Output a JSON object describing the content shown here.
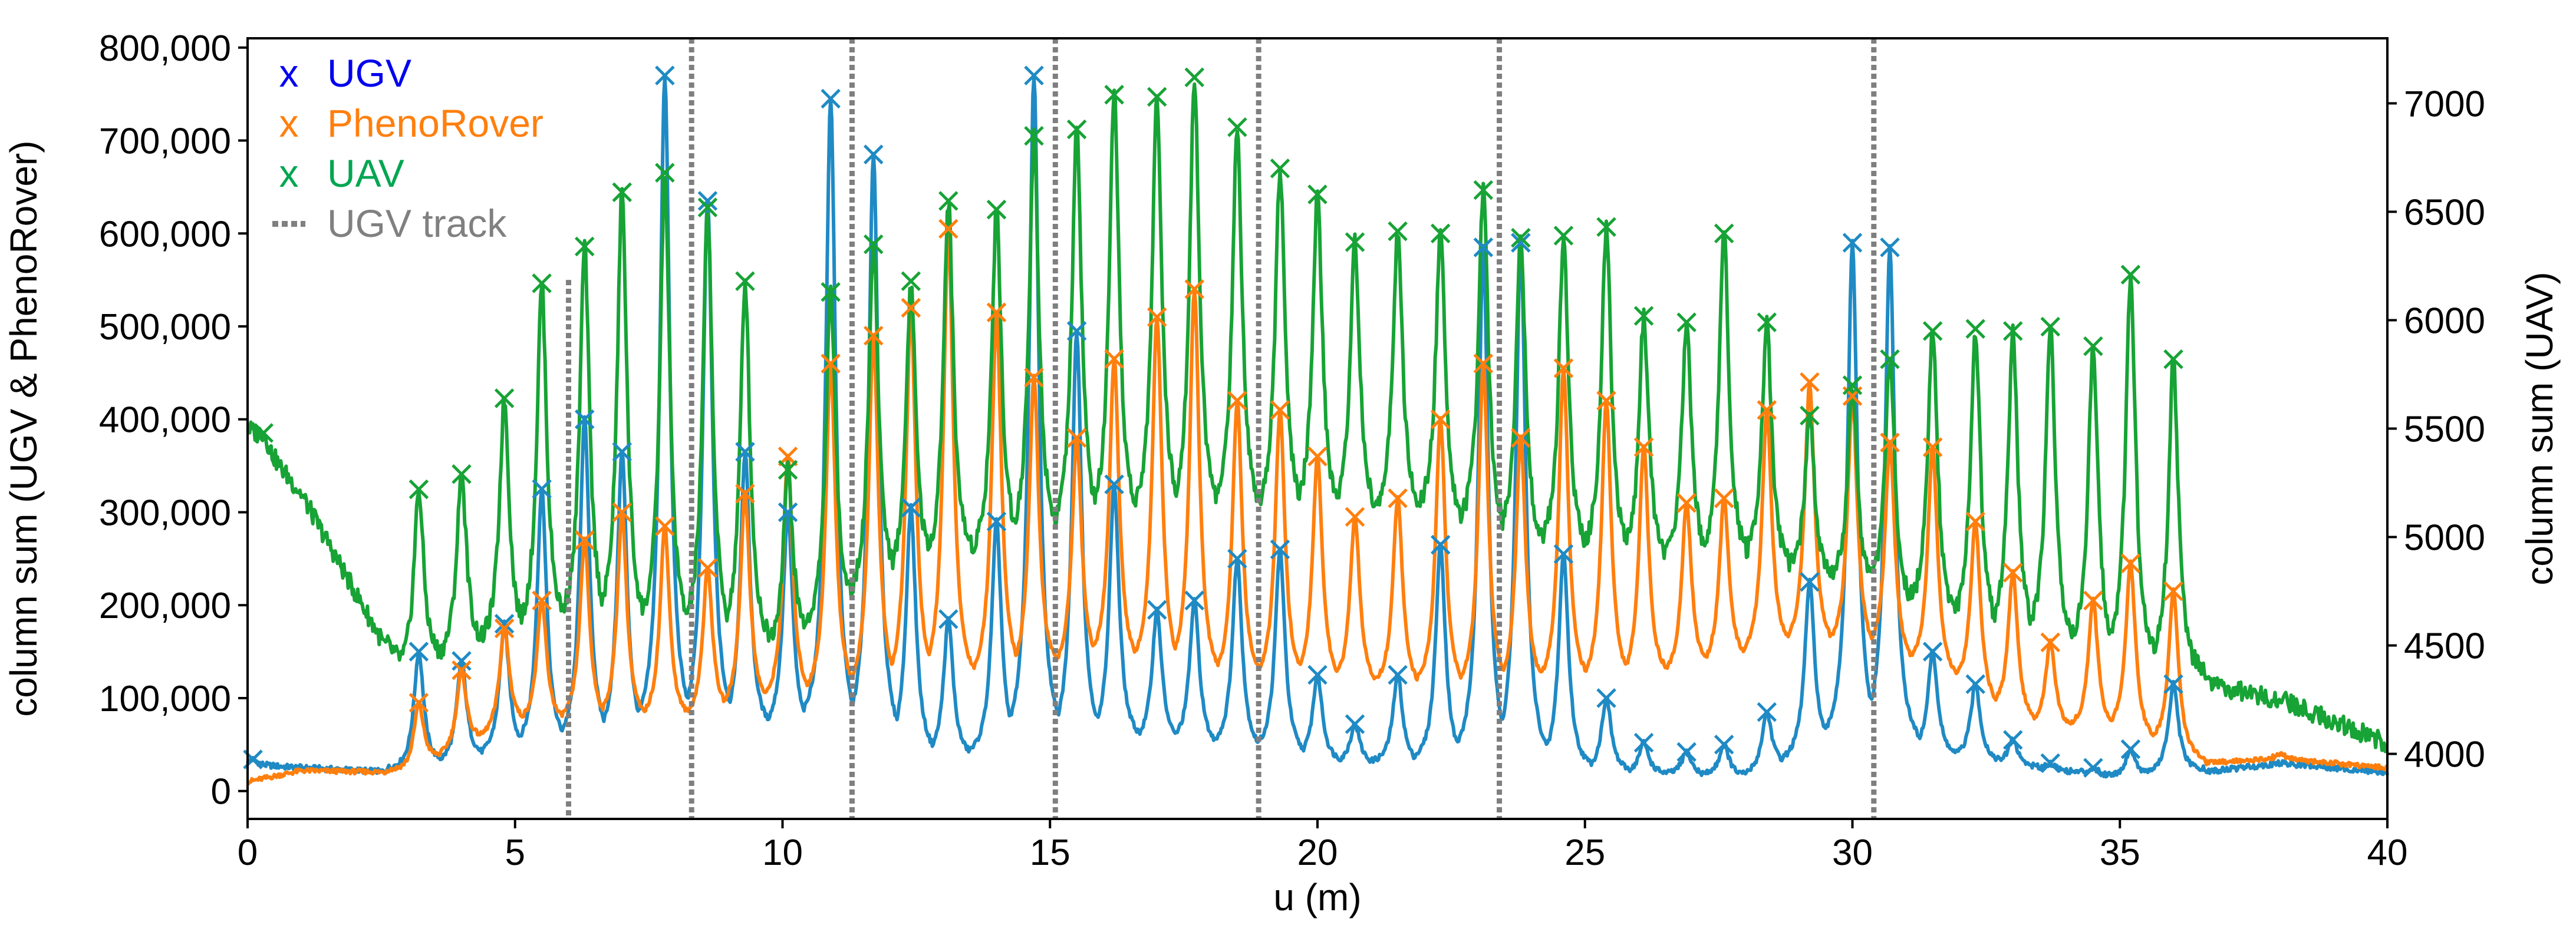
{
  "chart_data": {
    "type": "line",
    "title": "",
    "xlabel": "u (m)",
    "ylabel_left": "column sum (UGV & PhenoRover)",
    "ylabel_right": "column sum (UAV)",
    "xlim": [
      0,
      40
    ],
    "ylim_left": [
      -30000,
      810000
    ],
    "ylim_right": [
      3700,
      7300
    ],
    "xticks": [
      0,
      5,
      10,
      15,
      20,
      25,
      30,
      35,
      40
    ],
    "xtick_labels": [
      "0",
      "5",
      "10",
      "15",
      "20",
      "25",
      "30",
      "35",
      "40"
    ],
    "yticks_left": [
      0,
      100000,
      200000,
      300000,
      400000,
      500000,
      600000,
      700000,
      800000
    ],
    "ytick_labels_left": [
      "0",
      "100,000",
      "200,000",
      "300,000",
      "400,000",
      "500,000",
      "600,000",
      "700,000",
      "800,000"
    ],
    "yticks_right": [
      4000,
      4500,
      5000,
      5500,
      6000,
      6500,
      7000
    ],
    "ytick_labels_right": [
      "4000",
      "4500",
      "5000",
      "5500",
      "6000",
      "6500",
      "7000"
    ],
    "grid": false,
    "legend_position": "top-left",
    "legend": [
      {
        "marker": "x",
        "label": "UGV",
        "color": "#0000ee"
      },
      {
        "marker": "x",
        "label": "PhenoRover",
        "color": "#ff7f0e"
      },
      {
        "marker": "x",
        "label": "UAV",
        "color": "#00a651"
      },
      {
        "marker": "line-dotted",
        "label": "UGV track",
        "color": "#808080"
      }
    ],
    "ugv_track_x": [
      6.0,
      8.3,
      11.3,
      15.1,
      18.9,
      23.4,
      30.4
    ],
    "series": [
      {
        "name": "UGV",
        "axis": "left",
        "color": "#1f8ac4",
        "baseline": [
          [
            0,
            28000
          ],
          [
            2.9,
            20000
          ],
          [
            5,
            40000
          ],
          [
            10,
            60000
          ],
          [
            13,
            30000
          ],
          [
            17,
            50000
          ],
          [
            20,
            30000
          ],
          [
            25,
            20000
          ],
          [
            28,
            15000
          ],
          [
            30,
            50000
          ],
          [
            31,
            40000
          ],
          [
            35,
            15000
          ],
          [
            36.5,
            20000
          ],
          [
            38,
            30000
          ],
          [
            40,
            20000
          ]
        ],
        "peaks": [
          [
            0.1,
            34000
          ],
          [
            3.2,
            150000
          ],
          [
            4.0,
            140000
          ],
          [
            4.8,
            180000
          ],
          [
            5.5,
            325000
          ],
          [
            6.3,
            400000
          ],
          [
            7.0,
            365000
          ],
          [
            7.8,
            770000
          ],
          [
            8.6,
            635000
          ],
          [
            9.3,
            365000
          ],
          [
            10.1,
            300000
          ],
          [
            10.9,
            745000
          ],
          [
            11.7,
            685000
          ],
          [
            12.4,
            305000
          ],
          [
            13.1,
            185000
          ],
          [
            14.0,
            290000
          ],
          [
            14.7,
            770000
          ],
          [
            15.5,
            495000
          ],
          [
            16.2,
            330000
          ],
          [
            17.0,
            195000
          ],
          [
            17.7,
            205000
          ],
          [
            18.5,
            250000
          ],
          [
            19.3,
            260000
          ],
          [
            20.0,
            125000
          ],
          [
            20.7,
            72000
          ],
          [
            21.5,
            125000
          ],
          [
            22.3,
            265000
          ],
          [
            23.1,
            585000
          ],
          [
            23.8,
            590000
          ],
          [
            24.6,
            255000
          ],
          [
            25.4,
            100000
          ],
          [
            26.1,
            52000
          ],
          [
            26.9,
            42000
          ],
          [
            27.6,
            50000
          ],
          [
            28.4,
            85000
          ],
          [
            29.2,
            225000
          ],
          [
            30.0,
            590000
          ],
          [
            30.7,
            585000
          ],
          [
            31.5,
            150000
          ],
          [
            32.3,
            115000
          ],
          [
            33.0,
            55000
          ],
          [
            33.7,
            30000
          ],
          [
            34.5,
            25000
          ],
          [
            35.2,
            45000
          ],
          [
            36.0,
            115000
          ]
        ],
        "markers_x": [
          0.1,
          3.2,
          4.0,
          4.8,
          5.5,
          6.3,
          7.0,
          7.8,
          8.6,
          9.3,
          10.1,
          10.9,
          11.7,
          12.4,
          13.1,
          14.0,
          14.7,
          15.5,
          16.2,
          17.0,
          17.7,
          18.5,
          19.3,
          20.0,
          20.7,
          21.5,
          22.3,
          23.1,
          23.8,
          24.6,
          25.4,
          26.1,
          26.9,
          27.6,
          28.4,
          29.2,
          30.0,
          30.7,
          31.5,
          32.3,
          33.0,
          33.7,
          34.5,
          35.2,
          36.0
        ]
      },
      {
        "name": "PhenoRover",
        "axis": "left",
        "color": "#ff7f0e",
        "baseline": [
          [
            0,
            10000
          ],
          [
            1,
            22000
          ],
          [
            3,
            20000
          ],
          [
            5,
            70000
          ],
          [
            8,
            70000
          ],
          [
            10,
            90000
          ],
          [
            14,
            110000
          ],
          [
            16,
            130000
          ],
          [
            18,
            110000
          ],
          [
            20,
            110000
          ],
          [
            23,
            100000
          ],
          [
            26,
            110000
          ],
          [
            29,
            150000
          ],
          [
            30.5,
            140000
          ],
          [
            32,
            110000
          ],
          [
            33,
            70000
          ],
          [
            35,
            60000
          ],
          [
            36.5,
            30000
          ],
          [
            38,
            35000
          ],
          [
            40,
            25000
          ]
        ],
        "peaks": [
          [
            3.2,
            95000
          ],
          [
            4.0,
            130000
          ],
          [
            4.8,
            175000
          ],
          [
            5.5,
            205000
          ],
          [
            6.3,
            270000
          ],
          [
            7.0,
            300000
          ],
          [
            7.8,
            285000
          ],
          [
            8.6,
            240000
          ],
          [
            9.3,
            320000
          ],
          [
            10.1,
            360000
          ],
          [
            10.9,
            460000
          ],
          [
            11.7,
            490000
          ],
          [
            12.4,
            520000
          ],
          [
            13.1,
            605000
          ],
          [
            14.0,
            515000
          ],
          [
            14.7,
            445000
          ],
          [
            15.5,
            380000
          ],
          [
            16.2,
            465000
          ],
          [
            17.0,
            510000
          ],
          [
            17.7,
            540000
          ],
          [
            18.5,
            420000
          ],
          [
            19.3,
            410000
          ],
          [
            20.0,
            360000
          ],
          [
            20.7,
            295000
          ],
          [
            21.5,
            315000
          ],
          [
            22.3,
            400000
          ],
          [
            23.1,
            460000
          ],
          [
            23.8,
            380000
          ],
          [
            24.6,
            455000
          ],
          [
            25.4,
            420000
          ],
          [
            26.1,
            370000
          ],
          [
            26.9,
            310000
          ],
          [
            27.6,
            315000
          ],
          [
            28.4,
            410000
          ],
          [
            29.2,
            440000
          ],
          [
            30.0,
            425000
          ],
          [
            30.7,
            375000
          ],
          [
            31.5,
            370000
          ],
          [
            32.3,
            290000
          ],
          [
            33.0,
            235000
          ],
          [
            33.7,
            160000
          ],
          [
            34.5,
            205000
          ],
          [
            35.2,
            245000
          ],
          [
            36.0,
            215000
          ],
          [
            38.0,
            40000
          ]
        ],
        "markers_x": [
          3.2,
          4.0,
          4.8,
          5.5,
          6.3,
          7.0,
          7.8,
          8.6,
          9.3,
          10.1,
          10.9,
          11.7,
          12.4,
          13.1,
          14.0,
          14.7,
          15.5,
          16.2,
          17.0,
          17.7,
          18.5,
          19.3,
          20.0,
          20.7,
          21.5,
          22.3,
          23.1,
          23.8,
          24.6,
          25.4,
          26.1,
          26.9,
          27.6,
          28.4,
          29.2,
          30.0,
          30.7,
          31.5,
          32.3,
          33.0,
          33.7,
          34.5,
          35.2,
          36.0
        ]
      },
      {
        "name": "UAV",
        "axis": "right",
        "color": "#17a335",
        "baseline": [
          [
            0,
            5500
          ],
          [
            1,
            5200
          ],
          [
            2,
            4750
          ],
          [
            2.9,
            4350
          ],
          [
            4,
            4450
          ],
          [
            6,
            4550
          ],
          [
            8,
            4500
          ],
          [
            10,
            4450
          ],
          [
            12,
            4750
          ],
          [
            14,
            4900
          ],
          [
            16,
            5000
          ],
          [
            18,
            5050
          ],
          [
            20,
            5050
          ],
          [
            22,
            5050
          ],
          [
            24,
            4900
          ],
          [
            26,
            4850
          ],
          [
            28,
            4850
          ],
          [
            30,
            4750
          ],
          [
            32,
            4550
          ],
          [
            34,
            4450
          ],
          [
            36,
            4350
          ],
          [
            38,
            4250
          ],
          [
            39.5,
            4100
          ],
          [
            40,
            4050
          ]
        ],
        "peaks": [
          [
            0.3,
            5480
          ],
          [
            3.2,
            5220
          ],
          [
            4.0,
            5290
          ],
          [
            4.8,
            5640
          ],
          [
            5.5,
            6170
          ],
          [
            6.3,
            6340
          ],
          [
            7.0,
            6590
          ],
          [
            7.8,
            6680
          ],
          [
            8.6,
            6520
          ],
          [
            9.3,
            6180
          ],
          [
            10.1,
            5310
          ],
          [
            10.9,
            6130
          ],
          [
            11.7,
            6350
          ],
          [
            12.4,
            6180
          ],
          [
            13.1,
            6550
          ],
          [
            14.0,
            6510
          ],
          [
            14.7,
            6850
          ],
          [
            15.5,
            6880
          ],
          [
            16.2,
            7040
          ],
          [
            17.0,
            7030
          ],
          [
            17.7,
            7120
          ],
          [
            18.5,
            6890
          ],
          [
            19.3,
            6700
          ],
          [
            20.0,
            6580
          ],
          [
            20.7,
            6360
          ],
          [
            21.5,
            6410
          ],
          [
            22.3,
            6400
          ],
          [
            23.1,
            6600
          ],
          [
            23.8,
            6380
          ],
          [
            24.6,
            6390
          ],
          [
            25.4,
            6430
          ],
          [
            26.1,
            6020
          ],
          [
            26.9,
            5990
          ],
          [
            27.6,
            6400
          ],
          [
            28.4,
            5990
          ],
          [
            29.2,
            5560
          ],
          [
            30.0,
            5700
          ],
          [
            30.7,
            5820
          ],
          [
            31.5,
            5950
          ],
          [
            32.3,
            5960
          ],
          [
            33.0,
            5950
          ],
          [
            33.7,
            5970
          ],
          [
            34.5,
            5880
          ],
          [
            35.2,
            6210
          ],
          [
            36.0,
            5820
          ]
        ],
        "markers_x": [
          0.3,
          3.2,
          4.0,
          4.8,
          5.5,
          6.3,
          7.0,
          7.8,
          8.6,
          9.3,
          10.1,
          10.9,
          11.7,
          12.4,
          13.1,
          14.0,
          14.7,
          15.5,
          16.2,
          17.0,
          17.7,
          18.5,
          19.3,
          20.0,
          20.7,
          21.5,
          22.3,
          23.1,
          23.8,
          24.6,
          25.4,
          26.1,
          26.9,
          27.6,
          28.4,
          29.2,
          30.0,
          30.7,
          31.5,
          32.3,
          33.0,
          33.7,
          34.5,
          35.2,
          36.0
        ]
      }
    ]
  }
}
